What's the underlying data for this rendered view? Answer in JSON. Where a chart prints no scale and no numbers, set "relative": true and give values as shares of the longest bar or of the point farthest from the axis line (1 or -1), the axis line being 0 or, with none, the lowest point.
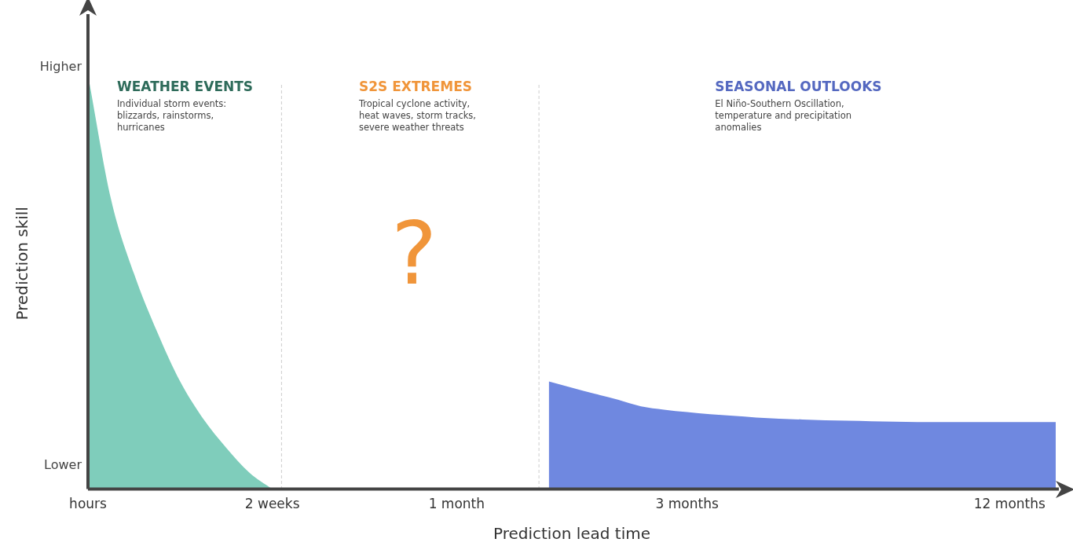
{
  "chart_data": {
    "type": "area",
    "relative": true,
    "xlabel": "Prediction lead time",
    "ylabel": "Prediction skill",
    "categories": [
      "hours",
      null,
      null,
      null,
      null,
      null,
      null,
      null,
      "2 weeks",
      null,
      null,
      null,
      null,
      null,
      null,
      null,
      "1 month",
      null,
      null,
      null,
      null,
      null,
      null,
      null,
      null,
      null,
      "3 months",
      null,
      null,
      null,
      null,
      null,
      null,
      null,
      null,
      null,
      null,
      null,
      null,
      null,
      "12 months",
      null,
      null
    ],
    "series": [
      {
        "color": "#7fcdbb",
        "values": [
          1,
          0.7,
          0.52,
          0.38,
          0.26,
          0.17,
          0.1,
          0.04,
          0,
          null,
          null,
          null,
          null,
          null,
          null,
          null,
          null,
          null,
          null,
          null,
          null,
          null,
          null,
          null,
          null,
          null,
          null,
          null,
          null,
          null,
          null,
          null,
          null,
          null,
          null,
          null,
          null,
          null,
          null,
          null,
          null,
          null,
          null
        ]
      },
      {
        "color": "#6f88e0",
        "values": [
          null,
          null,
          null,
          null,
          null,
          null,
          null,
          null,
          null,
          null,
          null,
          null,
          null,
          null,
          null,
          null,
          null,
          null,
          null,
          null,
          0.26,
          0.245,
          0.23,
          0.216,
          0.2,
          0.192,
          0.186,
          0.181,
          0.177,
          0.173,
          0.17,
          0.168,
          0.166,
          0.165,
          0.164,
          0.163,
          0.162,
          0.162,
          0.162,
          0.162,
          0.162,
          0.162,
          0.162
        ]
      }
    ],
    "annotations": [
      "Higher",
      "Lower",
      "WEATHER EVENTS",
      "Individual storm events:\nblizzards, rainstorms,\nhurricanes",
      "S2S EXTREMES",
      "Tropical cyclone activity,\nheat waves, storm tracks,\nsevere weather threats",
      "SEASONAL OUTLOOKS",
      "El Niño-Southern Oscillation,\ntemperature and precipitation\nanomalies",
      "?"
    ],
    "legend": false,
    "grid": false
  }
}
